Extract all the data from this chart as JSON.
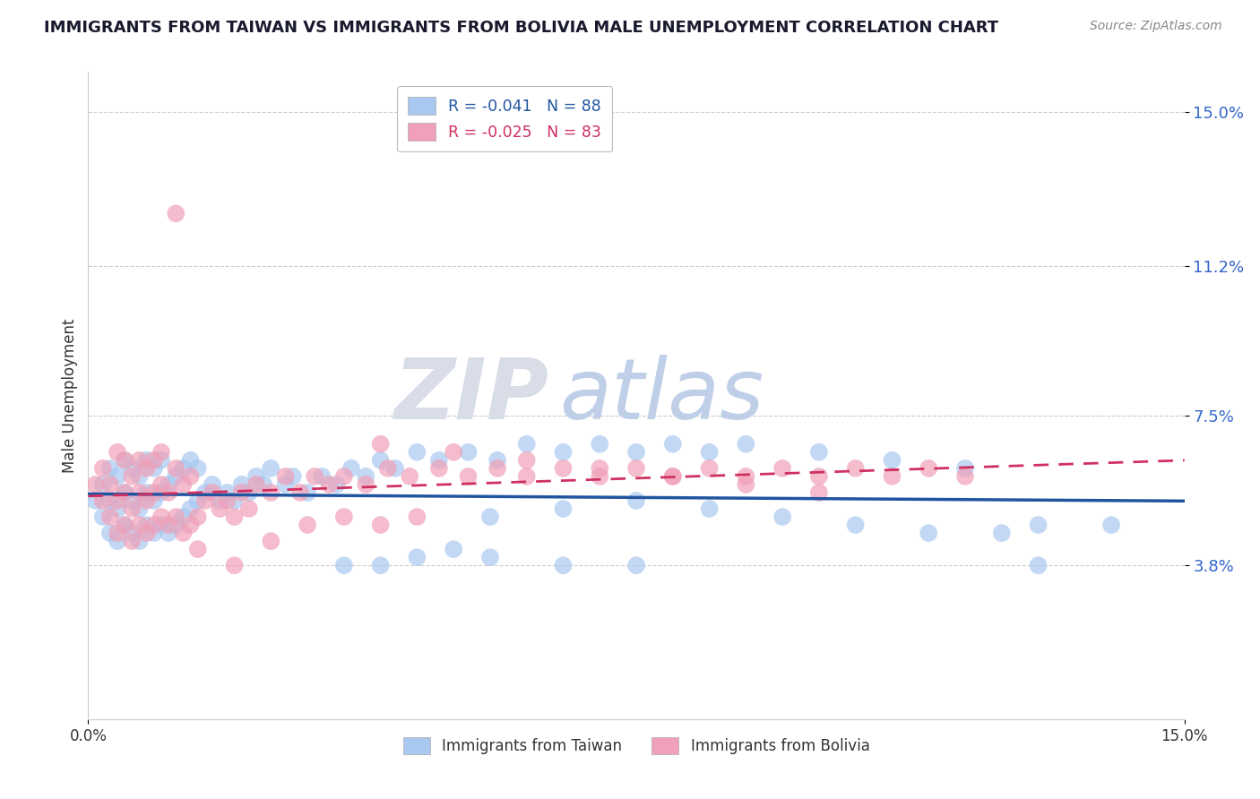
{
  "title": "IMMIGRANTS FROM TAIWAN VS IMMIGRANTS FROM BOLIVIA MALE UNEMPLOYMENT CORRELATION CHART",
  "source_text": "Source: ZipAtlas.com",
  "ylabel": "Male Unemployment",
  "xlim": [
    0.0,
    0.15
  ],
  "ylim": [
    0.0,
    0.16
  ],
  "xtick_labels": [
    "0.0%",
    "15.0%"
  ],
  "ytick_values": [
    0.038,
    0.075,
    0.112,
    0.15
  ],
  "ytick_labels": [
    "3.8%",
    "7.5%",
    "11.2%",
    "15.0%"
  ],
  "taiwan_color": "#a8c8f0",
  "bolivia_color": "#f0a0b8",
  "taiwan_line_color": "#2155a0",
  "bolivia_line_color": "#d03060",
  "taiwan_n": 88,
  "bolivia_n": 83,
  "legend_taiwan_label": "R = -0.041   N = 88",
  "legend_bolivia_label": "R = -0.025   N = 83",
  "legend_taiwan_footer": "Immigrants from Taiwan",
  "legend_bolivia_footer": "Immigrants from Bolivia",
  "watermark_zip": "ZIP",
  "watermark_atlas": "atlas",
  "taiwan_x": [
    0.001,
    0.002,
    0.002,
    0.003,
    0.003,
    0.003,
    0.004,
    0.004,
    0.004,
    0.005,
    0.005,
    0.005,
    0.006,
    0.006,
    0.006,
    0.007,
    0.007,
    0.007,
    0.008,
    0.008,
    0.008,
    0.009,
    0.009,
    0.009,
    0.01,
    0.01,
    0.01,
    0.011,
    0.011,
    0.012,
    0.012,
    0.013,
    0.013,
    0.014,
    0.014,
    0.015,
    0.015,
    0.016,
    0.017,
    0.018,
    0.019,
    0.02,
    0.021,
    0.022,
    0.023,
    0.024,
    0.025,
    0.027,
    0.028,
    0.03,
    0.032,
    0.034,
    0.036,
    0.038,
    0.04,
    0.042,
    0.045,
    0.048,
    0.052,
    0.056,
    0.06,
    0.065,
    0.07,
    0.075,
    0.08,
    0.085,
    0.09,
    0.1,
    0.11,
    0.12,
    0.13,
    0.14,
    0.055,
    0.065,
    0.075,
    0.085,
    0.095,
    0.105,
    0.115,
    0.125,
    0.035,
    0.04,
    0.045,
    0.05,
    0.055,
    0.065,
    0.075,
    0.13
  ],
  "taiwan_y": [
    0.054,
    0.05,
    0.058,
    0.046,
    0.054,
    0.062,
    0.044,
    0.052,
    0.06,
    0.048,
    0.056,
    0.064,
    0.046,
    0.054,
    0.062,
    0.044,
    0.052,
    0.06,
    0.048,
    0.056,
    0.064,
    0.046,
    0.054,
    0.062,
    0.048,
    0.056,
    0.064,
    0.046,
    0.058,
    0.048,
    0.06,
    0.05,
    0.062,
    0.052,
    0.064,
    0.054,
    0.062,
    0.056,
    0.058,
    0.054,
    0.056,
    0.054,
    0.058,
    0.056,
    0.06,
    0.058,
    0.062,
    0.058,
    0.06,
    0.056,
    0.06,
    0.058,
    0.062,
    0.06,
    0.064,
    0.062,
    0.066,
    0.064,
    0.066,
    0.064,
    0.068,
    0.066,
    0.068,
    0.066,
    0.068,
    0.066,
    0.068,
    0.066,
    0.064,
    0.062,
    0.048,
    0.048,
    0.05,
    0.052,
    0.054,
    0.052,
    0.05,
    0.048,
    0.046,
    0.046,
    0.038,
    0.038,
    0.04,
    0.042,
    0.04,
    0.038,
    0.038,
    0.038
  ],
  "bolivia_x": [
    0.001,
    0.002,
    0.002,
    0.003,
    0.003,
    0.004,
    0.004,
    0.004,
    0.005,
    0.005,
    0.005,
    0.006,
    0.006,
    0.006,
    0.007,
    0.007,
    0.007,
    0.008,
    0.008,
    0.008,
    0.009,
    0.009,
    0.009,
    0.01,
    0.01,
    0.01,
    0.011,
    0.011,
    0.012,
    0.012,
    0.013,
    0.013,
    0.014,
    0.014,
    0.015,
    0.016,
    0.017,
    0.018,
    0.019,
    0.02,
    0.021,
    0.022,
    0.023,
    0.025,
    0.027,
    0.029,
    0.031,
    0.033,
    0.035,
    0.038,
    0.041,
    0.044,
    0.048,
    0.052,
    0.056,
    0.06,
    0.065,
    0.07,
    0.075,
    0.08,
    0.085,
    0.09,
    0.095,
    0.1,
    0.105,
    0.11,
    0.115,
    0.12,
    0.04,
    0.05,
    0.06,
    0.07,
    0.08,
    0.09,
    0.1,
    0.03,
    0.035,
    0.04,
    0.045,
    0.025,
    0.012,
    0.015,
    0.02
  ],
  "bolivia_y": [
    0.058,
    0.054,
    0.062,
    0.05,
    0.058,
    0.046,
    0.054,
    0.066,
    0.048,
    0.056,
    0.064,
    0.044,
    0.052,
    0.06,
    0.048,
    0.056,
    0.064,
    0.046,
    0.054,
    0.062,
    0.048,
    0.056,
    0.064,
    0.05,
    0.058,
    0.066,
    0.048,
    0.056,
    0.05,
    0.062,
    0.046,
    0.058,
    0.048,
    0.06,
    0.05,
    0.054,
    0.056,
    0.052,
    0.054,
    0.05,
    0.056,
    0.052,
    0.058,
    0.056,
    0.06,
    0.056,
    0.06,
    0.058,
    0.06,
    0.058,
    0.062,
    0.06,
    0.062,
    0.06,
    0.062,
    0.06,
    0.062,
    0.06,
    0.062,
    0.06,
    0.062,
    0.06,
    0.062,
    0.06,
    0.062,
    0.06,
    0.062,
    0.06,
    0.068,
    0.066,
    0.064,
    0.062,
    0.06,
    0.058,
    0.056,
    0.048,
    0.05,
    0.048,
    0.05,
    0.044,
    0.125,
    0.042,
    0.038
  ]
}
